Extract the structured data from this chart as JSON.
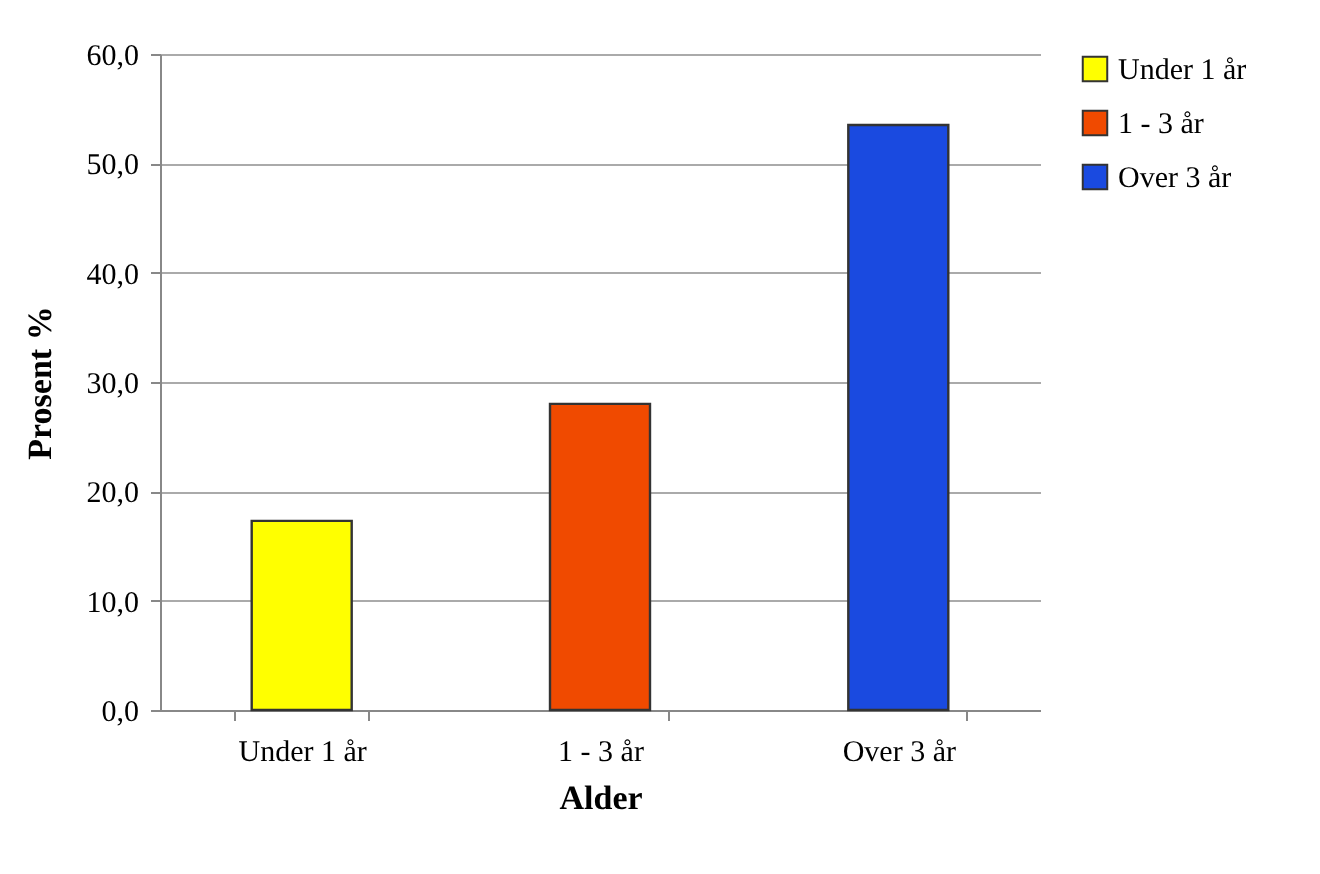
{
  "chart_data": {
    "type": "bar",
    "xlabel": "Alder",
    "ylabel": "Prosent %",
    "categories": [
      "Under 1 år",
      "1 - 3 år",
      "Over 3 år"
    ],
    "series": [
      {
        "name": "Under 1 år",
        "color": "#ffff00",
        "values": [
          17.3,
          null,
          null
        ]
      },
      {
        "name": "1 - 3 år",
        "color": "#f04a00",
        "values": [
          null,
          28.0,
          null
        ]
      },
      {
        "name": "Over 3 år",
        "color": "#1a4ae0",
        "values": [
          null,
          null,
          53.5
        ]
      }
    ],
    "ylim": [
      0,
      60
    ],
    "yticks": [
      {
        "value": 0,
        "label": "0,0"
      },
      {
        "value": 10,
        "label": "10,0"
      },
      {
        "value": 20,
        "label": "20,0"
      },
      {
        "value": 30,
        "label": "30,0"
      },
      {
        "value": 40,
        "label": "40,0"
      },
      {
        "value": 50,
        "label": "50,0"
      },
      {
        "value": 60,
        "label": "60,0"
      }
    ],
    "grid": "y",
    "legend": "right"
  }
}
